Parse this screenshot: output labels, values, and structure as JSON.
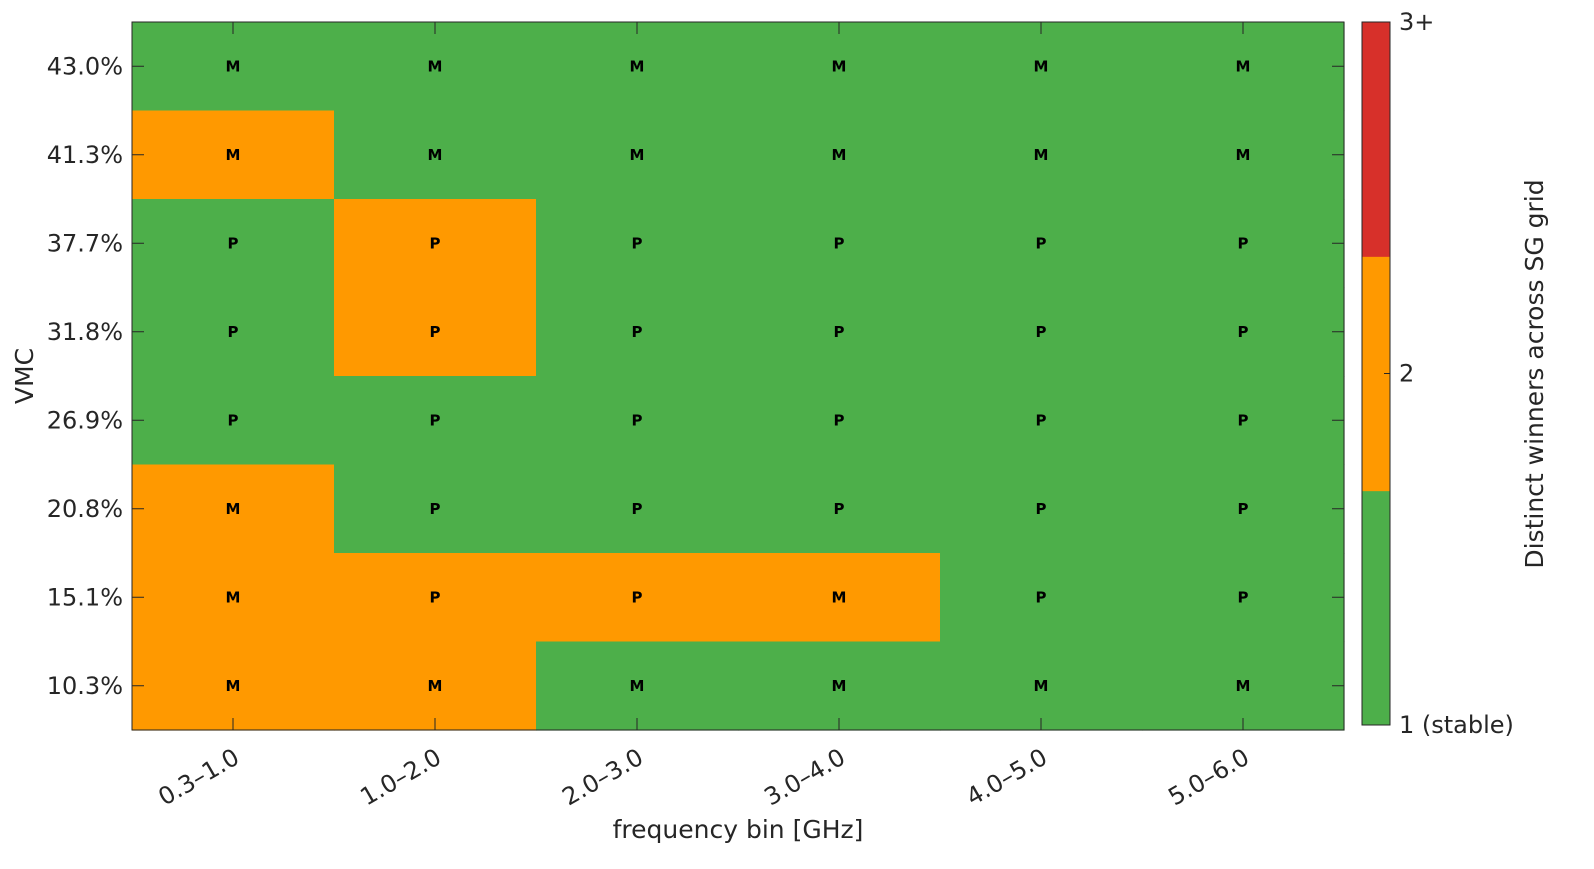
{
  "chart_data": {
    "type": "heatmap",
    "title": "",
    "xlabel": "frequency bin [GHz]",
    "ylabel": "VMC",
    "x_categories": [
      "0.3–1.0",
      "1.0–2.0",
      "2.0–3.0",
      "3.0–4.0",
      "4.0–5.0",
      "5.0–6.0"
    ],
    "y_categories_top_to_bottom": [
      "43.0%",
      "41.3%",
      "37.7%",
      "31.8%",
      "26.9%",
      "20.8%",
      "15.1%",
      "10.3%"
    ],
    "values": [
      [
        1,
        1,
        1,
        1,
        1,
        1
      ],
      [
        2,
        1,
        1,
        1,
        1,
        1
      ],
      [
        1,
        2,
        1,
        1,
        1,
        1
      ],
      [
        1,
        2,
        1,
        1,
        1,
        1
      ],
      [
        1,
        1,
        1,
        1,
        1,
        1
      ],
      [
        2,
        1,
        1,
        1,
        1,
        1
      ],
      [
        2,
        2,
        2,
        2,
        1,
        1
      ],
      [
        2,
        2,
        1,
        1,
        1,
        1
      ]
    ],
    "cell_labels": [
      [
        "M",
        "M",
        "M",
        "M",
        "M",
        "M"
      ],
      [
        "M",
        "M",
        "M",
        "M",
        "M",
        "M"
      ],
      [
        "P",
        "P",
        "P",
        "P",
        "P",
        "P"
      ],
      [
        "P",
        "P",
        "P",
        "P",
        "P",
        "P"
      ],
      [
        "P",
        "P",
        "P",
        "P",
        "P",
        "P"
      ],
      [
        "M",
        "P",
        "P",
        "P",
        "P",
        "P"
      ],
      [
        "M",
        "P",
        "P",
        "M",
        "P",
        "P"
      ],
      [
        "M",
        "M",
        "M",
        "M",
        "M",
        "M"
      ]
    ],
    "colorbar": {
      "label": "Distinct winners across SG grid",
      "levels": [
        {
          "value": 1,
          "color": "#4daf4a"
        },
        {
          "value": 2,
          "color": "#ff9900"
        },
        {
          "value": 3,
          "color": "#d7302a"
        }
      ],
      "tick_labels": [
        "1 (stable)",
        "2",
        "3+"
      ],
      "range": [
        1,
        3
      ]
    },
    "grid": false
  }
}
